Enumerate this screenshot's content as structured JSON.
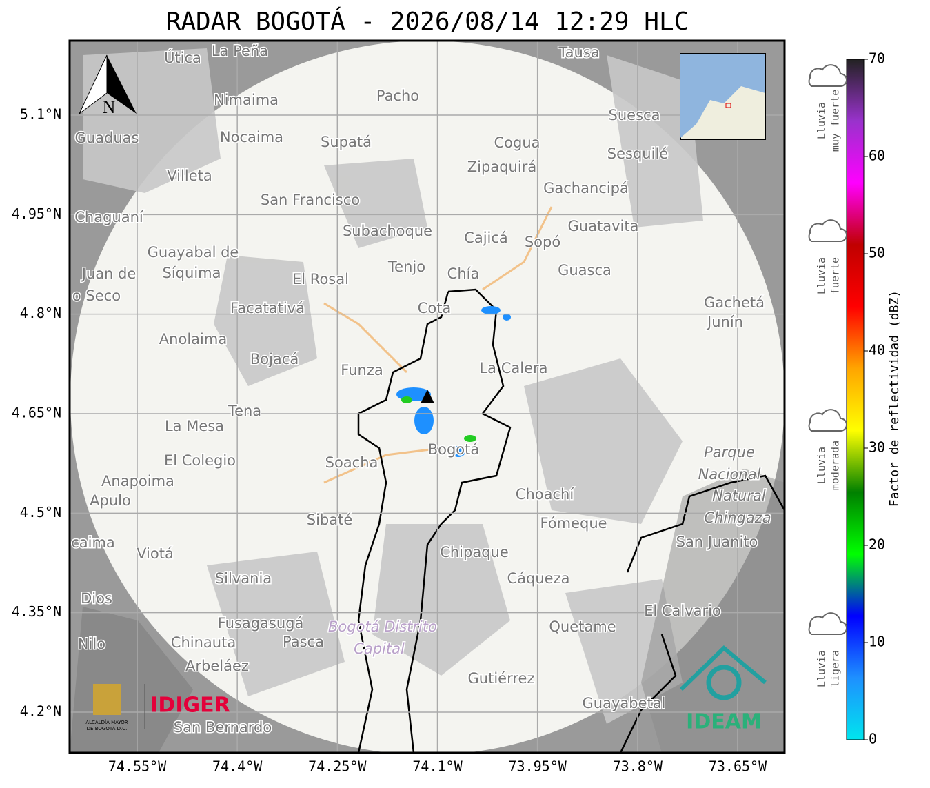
{
  "title": "RADAR BOGOTÁ - 2026/08/14 12:29 HLC",
  "map": {
    "lat_ticks": [
      {
        "value": 5.1,
        "label": "5.1°N"
      },
      {
        "value": 4.95,
        "label": "4.95°N"
      },
      {
        "value": 4.8,
        "label": "4.8°N"
      },
      {
        "value": 4.65,
        "label": "4.65°N"
      },
      {
        "value": 4.5,
        "label": "4.5°N"
      },
      {
        "value": 4.35,
        "label": "4.35°N"
      },
      {
        "value": 4.2,
        "label": "4.2°N"
      }
    ],
    "lon_ticks": [
      {
        "value": -74.55,
        "label": "74.55°W"
      },
      {
        "value": -74.4,
        "label": "74.4°W"
      },
      {
        "value": -74.25,
        "label": "74.25°W"
      },
      {
        "value": -74.1,
        "label": "74.1°W"
      },
      {
        "value": -73.95,
        "label": "73.95°W"
      },
      {
        "value": -73.8,
        "label": "73.8°W"
      },
      {
        "value": -73.65,
        "label": "73.65°W"
      }
    ],
    "places": [
      "La Peña",
      "Útica",
      "Tausa",
      "Pacho",
      "Nimaima",
      "Suesca",
      "Guaduas",
      "Nocaima",
      "Supatá",
      "Cogua",
      "Sesquilé",
      "Zipaquirá",
      "Villeta",
      "Gachancipá",
      "San Francisco",
      "Chaguaní",
      "Guatavita",
      "Subachoque",
      "Cajicá",
      "Sopó",
      "Guayabal de",
      "Síquima",
      "Tenjo",
      "Guasca",
      "El Rosal",
      "Chía",
      "Juan de",
      "o Seco",
      "Cota",
      "Facatativá",
      "Gachetá",
      "Junín",
      "Anolaima",
      "Bojacá",
      "La Calera",
      "Funza",
      "Tena",
      "La Mesa",
      "Bogotá",
      "Soacha",
      "Parque",
      "Nacional",
      "Natural",
      "Chingaza",
      "El Colegio",
      "Anapoima",
      "Apulo",
      "Choachí",
      "Sibaté",
      "Fómeque",
      "San Juanito",
      "caima",
      "Viotá",
      "Chipaque",
      "Silvania",
      "Cáqueza",
      "Dios",
      "El Calvario",
      "Fusagasugá",
      "Bogotá Distrito",
      "Capital",
      "Quetame",
      "Nilo",
      "Chinauta",
      "Pasca",
      "Arbeláez",
      "Gutiérrez",
      "Guayabetal",
      "San Bernardo"
    ],
    "north_label": "N",
    "logos": {
      "alcaldia": "ALCALDÍA MAYOR",
      "alcaldia_2": "DE BOGOTÁ D.C.",
      "idiger": "IDIGER",
      "ideam": "IDEAM"
    }
  },
  "colorbar": {
    "label": "Factor de reflectividad (dBZ)",
    "lim": [
      0,
      70
    ],
    "ticks": [
      0,
      10,
      20,
      30,
      40,
      50,
      60,
      70
    ],
    "colors": [
      "#00e5ee",
      "#1e90ff",
      "#0000ff",
      "#00ff00",
      "#008000",
      "#ffff00",
      "#ffa500",
      "#ff0000",
      "#c00000",
      "#ff00ff",
      "#9932cc",
      "#222222"
    ],
    "classes": [
      [
        "Lluvia",
        "muy fuerte"
      ],
      [
        "Lluvia",
        "fuerte"
      ],
      [
        "Lluvia",
        "moderada"
      ],
      [
        "Lluvia",
        "ligera"
      ]
    ]
  }
}
